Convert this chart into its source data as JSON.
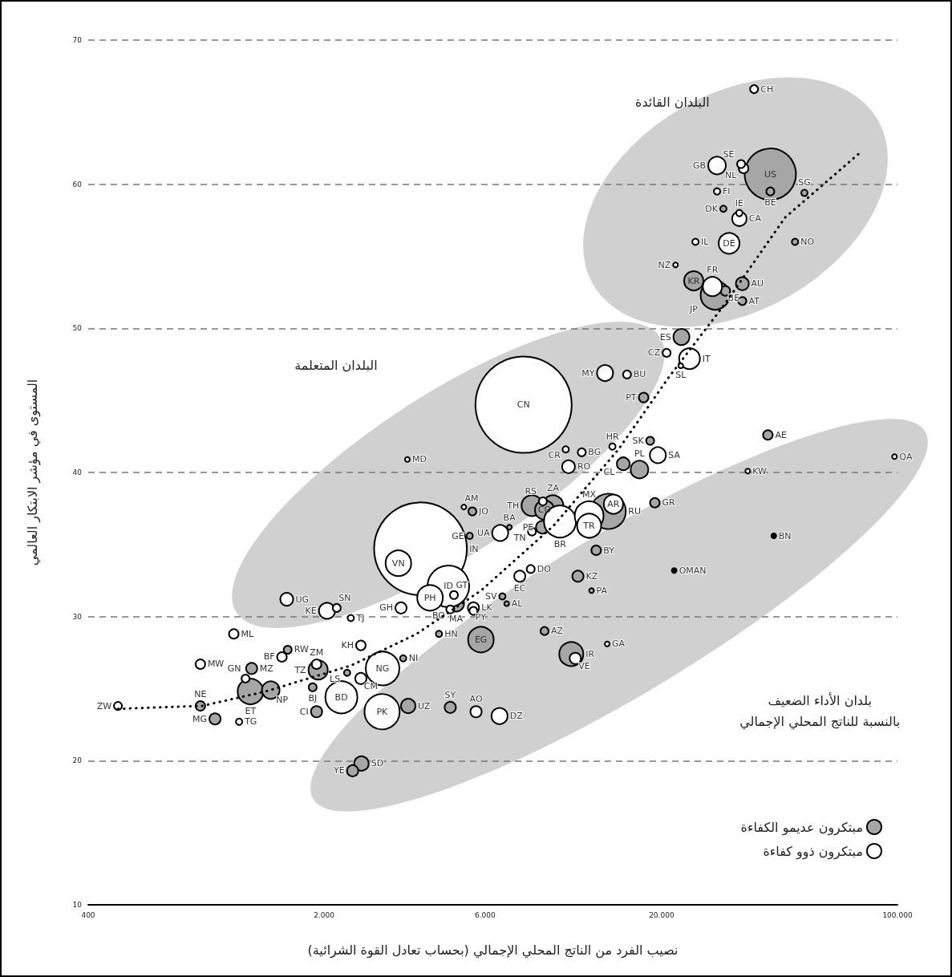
{
  "chart_data": {
    "type": "bubble",
    "xlabel": "نصيب الفرد من الناتج المحلي الإجمالي (بحساب تعادل القوة الشرائية)",
    "ylabel": "المستوى في مؤشر الابتكار العالمي",
    "annotations": [
      "البلدان القائدة",
      "البلدان المتعلمة",
      "بلدان الأداء الضعيف\nبالنسبة للناتج المحلي الإجمالي"
    ],
    "log": "x",
    "xlim": [
      400,
      100000
    ],
    "xticks": [
      400,
      {
        "value": 2000,
        "label": "2.000"
      },
      {
        "value": 6000,
        "label": "6.000"
      },
      {
        "value": 20000,
        "label": "20.000"
      },
      {
        "value": 100000,
        "label": "100.000"
      }
    ],
    "ylim": [
      10,
      70
    ],
    "yticks": [
      10,
      20,
      30,
      40,
      50,
      60,
      70
    ],
    "grid": "y",
    "legend": "bottom right",
    "series": [
      {
        "name": "مبتكرون عديمو الكفاءة",
        "color": "#a6a6a6",
        "x": [
          42000,
          13900,
          28800,
          5830,
          1210,
          10800,
          8260,
          9530,
          24900,
          9000,
          1920,
          1390,
          17200,
          22900,
          4920,
          3550,
          2580,
          34700,
          15400,
          8870,
          11300,
          1220,
          950,
          1900,
          4730,
          2430,
          17700,
          41300,
          19100,
          12800,
          860,
          30900,
          34700,
          42000,
          5500,
          9000,
          1850,
          1560,
          18500,
          53000,
          30500,
          49700,
          5400,
          6750,
          4380,
          3430,
          2340,
          7080,
          6950,
          12400
        ],
        "values": [
          60.7,
          37.3,
          52.3,
          28.4,
          24.8,
          27.4,
          37.7,
          37.7,
          53.3,
          37.4,
          26.3,
          24.9,
          40.2,
          49.4,
          30.9,
          23.8,
          19.8,
          53.1,
          40.6,
          36.2,
          32.8,
          26.4,
          22.9,
          23.4,
          23.7,
          19.3,
          45.2,
          42.6,
          37.9,
          34.6,
          23.8,
          52.6,
          51.9,
          59.5,
          37.3,
          29.0,
          25.1,
          27.7,
          42.2,
          59.4,
          58.3,
          56.0,
          35.6,
          31.4,
          28.8,
          27.1,
          26.1,
          36.2,
          30.9,
          31.8
        ],
        "sizes": [
          0.284,
          0.134,
          0.09,
          0.071,
          0.071,
          0.0625,
          0.047,
          0.047,
          0.04,
          0.04,
          0.04,
          0.0336,
          0.0336,
          0.0278,
          0.0278,
          0.0225,
          0.0225,
          0.0178,
          0.0178,
          0.0178,
          0.0136,
          0.0136,
          0.0136,
          0.0136,
          0.0136,
          0.0136,
          0.01,
          0.01,
          0.01,
          0.01,
          0.01,
          0.01,
          0.0069,
          0.0069,
          0.0069,
          0.0069,
          0.0069,
          0.0069,
          0.0069,
          0.0044,
          0.0044,
          0.0044,
          0.0044,
          0.0044,
          0.0044,
          0.0044,
          0.0044,
          0.0025,
          0.0025,
          0.0025
        ],
        "value_labels": [
          "US",
          "RU",
          "JP",
          "EG",
          "ET",
          "IR",
          "TH",
          "ZA",
          "KR",
          "CO",
          "TZ",
          "NP",
          "PL",
          "ES",
          "MA",
          "UZ",
          "SD",
          "AU",
          "CL",
          "PE",
          "KZ",
          "MZ",
          "MG",
          "CI",
          "SY",
          "YE",
          "PT",
          "AE",
          "GR",
          "BY",
          "NE",
          "BE",
          "AT",
          "BE",
          "JO",
          "AZ",
          "BJ",
          "RW",
          "SK",
          "SG",
          "DK",
          "NO",
          "GE",
          "SV",
          "HN",
          "NI",
          "LS",
          "BA",
          "AL",
          "PA"
        ]
      },
      {
        "name": "مبتكرون ذوو كفاءة",
        "color": "#ffffff",
        "x": [
          7800,
          3860,
          4670,
          2970,
          2980,
          10000,
          2250,
          12200,
          12200,
          3320,
          4120,
          31700,
          24200,
          28300,
          14400,
          29200,
          2040,
          6650,
          19500,
          13600,
          6620,
          34000,
          1550,
          10600,
          7600,
          5540,
          5640,
          3380,
          2570,
          11100,
          2570,
          1900,
          1080,
          860,
          1500,
          35000,
          37600,
          34400,
          15800,
          20700,
          11600,
          8900,
          8260,
          8190,
          4850,
          4730,
          5540,
          2180,
          1170,
          490,
          29200,
          34000,
          25200,
          10400,
          14300,
          2400,
          1120,
          22000,
          22800,
          36000,
          98000,
          3530,
          5190,
          13800
        ],
        "values": [
          44.7,
          34.7,
          32.1,
          23.4,
          26.4,
          36.6,
          24.4,
          37.0,
          36.3,
          33.7,
          31.3,
          55.9,
          47.9,
          52.9,
          37.8,
          61.3,
          30.4,
          35.8,
          41.2,
          46.9,
          23.1,
          57.6,
          31.2,
          40.4,
          32.8,
          30.6,
          23.4,
          30.6,
          25.7,
          27.1,
          28.0,
          26.7,
          28.8,
          26.7,
          27.2,
          61.1,
          66.6,
          61.4,
          46.8,
          48.3,
          41.4,
          38.0,
          35.9,
          33.3,
          31.5,
          30.5,
          30.4,
          30.6,
          25.7,
          23.8,
          59.5,
          58.0,
          56.0,
          41.6,
          41.8,
          29.9,
          22.7,
          54.4,
          47.4,
          40.1,
          41.1,
          40.9,
          37.6,
          28.1
        ],
        "sizes": [
          1,
          0.93,
          0.188,
          0.134,
          0.1225,
          0.111,
          0.111,
          0.09,
          0.0625,
          0.071,
          0.071,
          0.047,
          0.047,
          0.04,
          0.04,
          0.0336,
          0.0278,
          0.0278,
          0.0278,
          0.0278,
          0.0278,
          0.0225,
          0.0178,
          0.0178,
          0.0136,
          0.0136,
          0.0136,
          0.0136,
          0.0136,
          0.0136,
          0.01,
          0.01,
          0.01,
          0.01,
          0.01,
          0.01,
          0.0069,
          0.0069,
          0.0069,
          0.0069,
          0.0069,
          0.0069,
          0.0069,
          0.0069,
          0.0069,
          0.0069,
          0.0069,
          0.0069,
          0.0069,
          0.0069,
          0.0044,
          0.0044,
          0.0044,
          0.0044,
          0.0044,
          0.0044,
          0.0044,
          0.0025,
          0.0025,
          0.0025,
          0.0025,
          0.0025,
          0.0025,
          0.0025
        ],
        "value_labels": [
          "CN",
          "IN",
          "ID",
          "PK",
          "NG",
          "BR",
          "BD",
          "MX",
          "TR",
          "VN",
          "PH",
          "DE",
          "IT",
          "FR",
          "AR",
          "GB",
          "KE",
          "UA",
          "SA",
          "MY",
          "DZ",
          "CA",
          "UG",
          "RO",
          "EC",
          "LK",
          "AO",
          "GH",
          "CM",
          "VE",
          "KH",
          "ZM",
          "ML",
          "MW",
          "BF",
          "NL",
          "CH",
          "SE",
          "BU",
          "CZ",
          "BG",
          "RS",
          "TN",
          "DO",
          "GT",
          "BO",
          "PY",
          "SN",
          "GN",
          "ZW",
          "FI",
          "IE",
          "IL",
          "CR",
          "HR",
          "TJ",
          "TG",
          "NZ",
          "SL",
          "KW",
          "QA",
          "MD",
          "AM",
          "GA"
        ]
      },
      {
        "color": "#000000",
        "x": [
          21800,
          43000
        ],
        "values": [
          33.2,
          35.6
        ],
        "sizes": [
          0.0025,
          0.0025
        ],
        "value_labels": [
          "OMAN",
          "BN"
        ]
      },
      {
        "type": "line",
        "color": "#000000",
        "line_style": "dotted",
        "marker": "none",
        "x": [
          490,
          870,
          1340,
          2400,
          3760,
          5830,
          9570,
          14900,
          21000,
          30600,
          46500,
          76700
        ],
        "values": [
          23.6,
          23.8,
          24.8,
          26.6,
          28.8,
          31.8,
          36.3,
          41.6,
          46.6,
          51.6,
          57.7,
          62.1
        ]
      }
    ]
  }
}
